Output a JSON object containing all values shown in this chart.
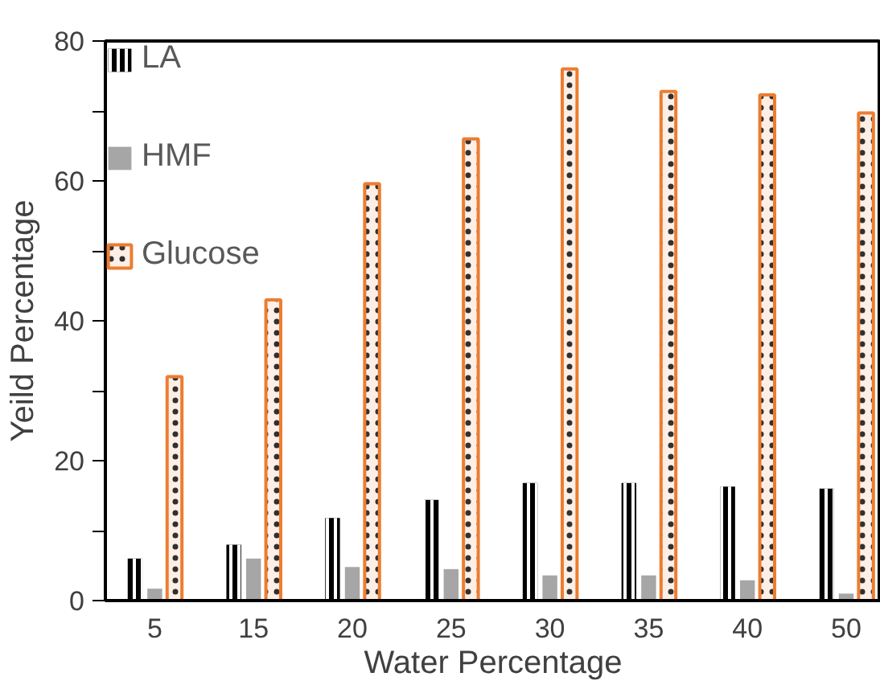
{
  "chart_data": {
    "type": "bar",
    "xlabel": "Water Percentage",
    "ylabel": "Yeild Percentage",
    "categories": [
      "5",
      "15",
      "20",
      "25",
      "30",
      "35",
      "40",
      "50"
    ],
    "series": [
      {
        "name": "LA",
        "color": "#000000",
        "values": [
          6,
          8,
          11.8,
          14.4,
          16.8,
          16.8,
          16.3,
          16
        ]
      },
      {
        "name": "HMF",
        "color": "#a6a6a6",
        "values": [
          1.7,
          6,
          4.8,
          4.5,
          3.6,
          3.6,
          2.9,
          1
        ]
      },
      {
        "name": "Glucose",
        "color": "#ed7d31",
        "values": [
          32,
          43,
          59.6,
          66,
          76,
          72.8,
          72.3,
          69.7
        ]
      }
    ],
    "ylim": [
      0,
      80
    ],
    "yticks": [
      0,
      {
        "value": 10,
        "label": null
      },
      20,
      {
        "value": 30,
        "label": null
      },
      40,
      {
        "value": 50,
        "label": null
      },
      60,
      {
        "value": 70,
        "label": null
      },
      80
    ],
    "grid": false,
    "legend": "top left"
  }
}
